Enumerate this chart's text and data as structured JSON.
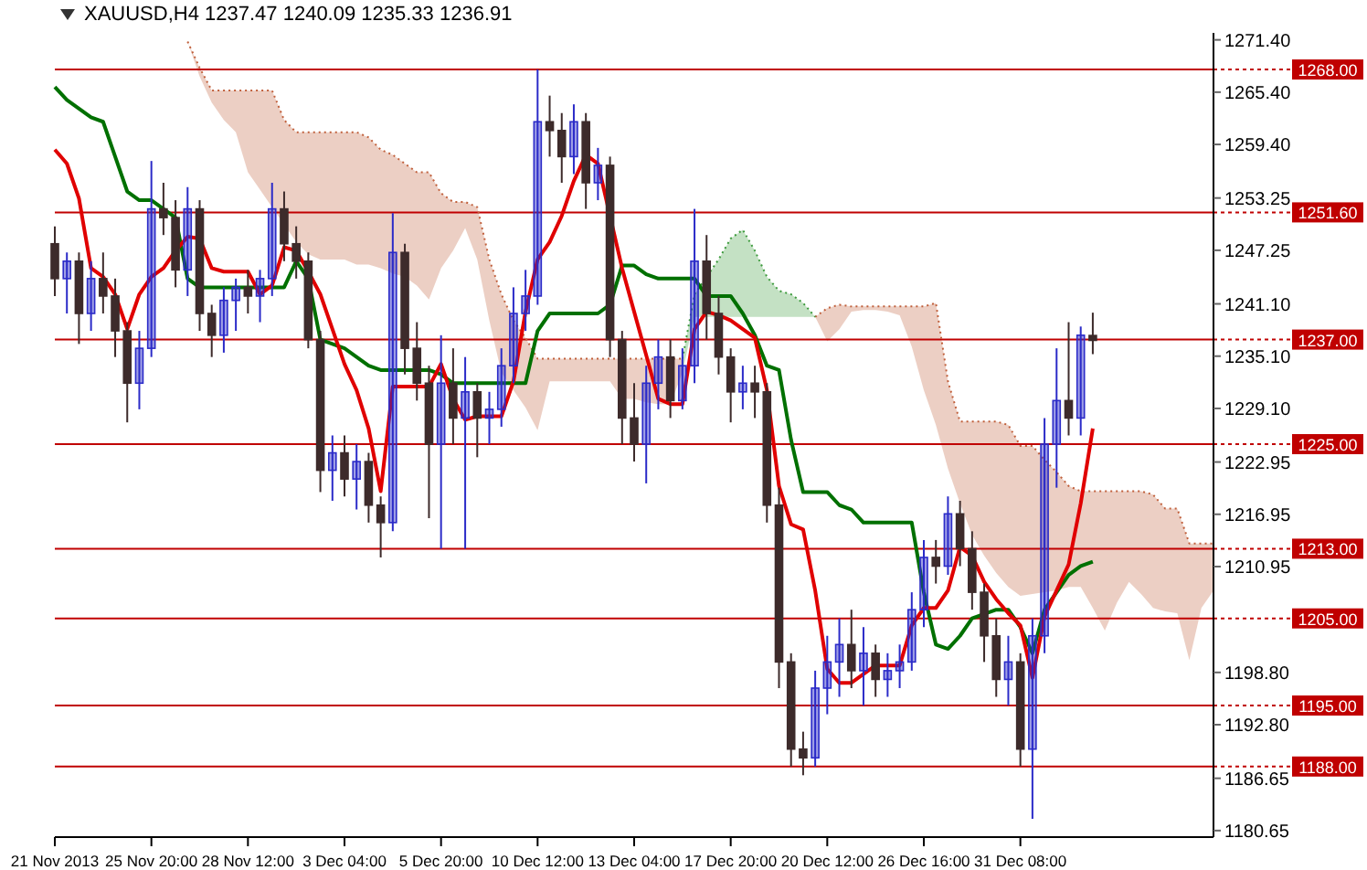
{
  "chart_data": {
    "type": "candlestick",
    "title": "XAUUSD,H4 1237.47 1240.09 1235.33 1236.91",
    "categories": [
      "21 Nov 2013",
      null,
      null,
      null,
      null,
      null,
      null,
      null,
      "25 Nov 20:00",
      null,
      null,
      null,
      null,
      null,
      null,
      null,
      "28 Nov 12:00",
      null,
      null,
      null,
      null,
      null,
      null,
      null,
      "3 Dec 04:00",
      null,
      null,
      null,
      null,
      null,
      null,
      null,
      "5 Dec 20:00",
      null,
      null,
      null,
      null,
      null,
      null,
      null,
      "10 Dec 12:00",
      null,
      null,
      null,
      null,
      null,
      null,
      null,
      "13 Dec 04:00",
      null,
      null,
      null,
      null,
      null,
      null,
      null,
      "17 Dec 20:00",
      null,
      null,
      null,
      null,
      null,
      null,
      null,
      "20 Dec 12:00",
      null,
      null,
      null,
      null,
      null,
      null,
      null,
      "26 Dec 16:00",
      null,
      null,
      null,
      null,
      null,
      null,
      null,
      "31 Dec 08:00",
      null,
      null,
      null,
      null,
      null,
      null,
      null,
      null,
      null,
      null,
      null,
      null,
      null,
      null,
      null,
      null
    ],
    "ylim": [
      1179.9,
      1272.2
    ],
    "yticks": [
      {
        "value": 1271.4,
        "label": "1271.40"
      },
      {
        "value": 1265.4,
        "label": "1265.40"
      },
      {
        "value": 1259.4,
        "label": "1259.40"
      },
      {
        "value": 1253.25,
        "label": "1253.25"
      },
      {
        "value": 1247.25,
        "label": "1247.25"
      },
      {
        "value": 1241.1,
        "label": "1241.10"
      },
      {
        "value": 1235.1,
        "label": "1235.10"
      },
      {
        "value": 1229.1,
        "label": "1229.10"
      },
      {
        "value": 1222.95,
        "label": "1222.95"
      },
      {
        "value": 1216.95,
        "label": "1216.95"
      },
      {
        "value": 1210.95,
        "label": "1210.95"
      },
      {
        "value": 1198.8,
        "label": "1198.80"
      },
      {
        "value": 1192.8,
        "label": "1192.80"
      },
      {
        "value": 1186.65,
        "label": "1186.65"
      },
      {
        "value": 1180.65,
        "label": "1180.65"
      }
    ],
    "ref_lines": [
      {
        "axis": "y",
        "value": 1268,
        "label": "1268.00",
        "color": "#c00000"
      },
      {
        "axis": "y",
        "value": 1251.6,
        "label": "1251.60",
        "color": "#c00000"
      },
      {
        "axis": "y",
        "value": 1237,
        "label": "1237.00",
        "color": "#c00000"
      },
      {
        "axis": "y",
        "value": 1225,
        "label": "1225.00",
        "color": "#c00000"
      },
      {
        "axis": "y",
        "value": 1213,
        "label": "1213.00",
        "color": "#c00000"
      },
      {
        "axis": "y",
        "value": 1205,
        "label": "1205.00",
        "color": "#c00000"
      },
      {
        "axis": "y",
        "value": 1195,
        "label": "1195.00",
        "color": "#c00000"
      },
      {
        "axis": "y",
        "value": 1188,
        "label": "1188.00",
        "color": "#c00000"
      }
    ],
    "series": [
      {
        "type": "line",
        "color": "#c0603c",
        "line_style": "dotted",
        "values": [
          null,
          null,
          null,
          null,
          null,
          null,
          null,
          null,
          null,
          null,
          null,
          1271.2,
          1268.2,
          1265.6,
          1265.6,
          1265.6,
          1265.6,
          1265.6,
          1265.6,
          1262.2,
          1260.8,
          1260.8,
          1260.8,
          1260.8,
          1260.8,
          1260.8,
          1260.2,
          1258.8,
          1258.2,
          1257.2,
          1256.2,
          1256.2,
          1253.8,
          1252.8,
          1252.8,
          1252.2,
          1246.2,
          1242.2,
          1239.2,
          1237.2,
          1234.8,
          1234.8,
          1234.8,
          1234.8,
          1234.8,
          1234.8,
          1234.8,
          1234.8,
          1234.8,
          1234.8,
          1234.8,
          1234.8,
          1234.8,
          null,
          null,
          null,
          null,
          null,
          null,
          null,
          null,
          null,
          null,
          1239.6,
          1240.6,
          1241,
          1240.8,
          1240.8,
          1240.8,
          1240.8,
          1240.8,
          1240.8,
          1240.8,
          1241.2,
          1232.2,
          1227.6,
          1227.6,
          1227.6,
          1227.6,
          1227.2,
          1224.8,
          1224.8,
          1223.2,
          1221.8,
          1220.2,
          1219.6,
          1219.6,
          1219.6,
          1219.6,
          1219.6,
          1219.6,
          1219.2,
          1217.6,
          1217.6,
          1213.6,
          1213.6,
          1213.6
        ],
        "lower": [
          null,
          null,
          null,
          null,
          null,
          null,
          null,
          null,
          null,
          null,
          null,
          1271.2,
          1267.2,
          1264.2,
          1262.2,
          1260.8,
          1256.2,
          1254.2,
          1252.2,
          1250.2,
          1248.2,
          1246.8,
          1246.2,
          1246.2,
          1246.2,
          1245.6,
          1245.6,
          1245.2,
          1244.6,
          1244.2,
          1243.2,
          1241.6,
          1245.2,
          1247.2,
          1249.8,
          1246.2,
          1239.2,
          1233.2,
          1231.2,
          1229.2,
          1226.6,
          1232.2,
          1232.2,
          1232.2,
          1232.2,
          1232.2,
          1232.2,
          1230.2,
          1230.2,
          1229.8,
          1229.6,
          1229.6,
          1233.2,
          null,
          null,
          null,
          null,
          null,
          null,
          null,
          null,
          null,
          null,
          1239.6,
          1236.8,
          1238.2,
          1240.2,
          1240.4,
          1240.4,
          1240.2,
          1239.8,
          1236.2,
          1231.2,
          1227.2,
          1222.2,
          1218.2,
          1214.6,
          1212.2,
          1210.2,
          1208.6,
          1207.6,
          1207.8,
          1208,
          1208.2,
          1208.6,
          1208.6,
          1206.2,
          1203.6,
          1206.8,
          1209.2,
          1207.8,
          1206.2,
          1205.8,
          1205.6,
          1200.2,
          1206.2,
          1208.2
        ],
        "upper": [
          null,
          null,
          null,
          null,
          null,
          null,
          null,
          null,
          null,
          null,
          null,
          1271.2,
          1268.2,
          1265.6,
          1265.6,
          1265.6,
          1265.6,
          1265.6,
          1265.6,
          1262.2,
          1260.8,
          1260.8,
          1260.8,
          1260.8,
          1260.8,
          1260.8,
          1260.2,
          1258.8,
          1258.2,
          1257.2,
          1256.2,
          1256.2,
          1253.8,
          1252.8,
          1252.8,
          1252.2,
          1246.2,
          1242.2,
          1239.2,
          1237.2,
          1234.8,
          1234.8,
          1234.8,
          1234.8,
          1234.8,
          1234.8,
          1234.8,
          1234.8,
          1234.8,
          1234.8,
          1234.8,
          1234.8,
          1234.8,
          null,
          null,
          null,
          null,
          null,
          null,
          null,
          null,
          null,
          null,
          1239.6,
          1240.6,
          1241,
          1240.8,
          1240.8,
          1240.8,
          1240.8,
          1240.8,
          1240.8,
          1240.8,
          1241.2,
          1232.2,
          1227.6,
          1227.6,
          1227.6,
          1227.6,
          1227.2,
          1224.8,
          1224.8,
          1223.2,
          1221.8,
          1220.2,
          1219.6,
          1219.6,
          1219.6,
          1219.6,
          1219.6,
          1219.6,
          1219.2,
          1217.6,
          1217.6,
          1213.6,
          1213.6,
          1213.6
        ]
      },
      {
        "type": "line",
        "color": "#3c9a3c",
        "line_style": "dotted",
        "values": [
          null,
          null,
          null,
          null,
          null,
          null,
          null,
          null,
          null,
          null,
          null,
          null,
          null,
          null,
          null,
          null,
          null,
          null,
          null,
          null,
          null,
          null,
          null,
          null,
          null,
          null,
          null,
          null,
          null,
          null,
          null,
          null,
          null,
          null,
          null,
          null,
          null,
          null,
          null,
          null,
          null,
          null,
          null,
          null,
          null,
          null,
          null,
          null,
          null,
          null,
          null,
          null,
          1234.8,
          1242.2,
          1244.2,
          1246.2,
          1248.6,
          1249.6,
          1247.2,
          1244.2,
          1242.6,
          1242.2,
          1241.2,
          1239.6,
          null,
          null,
          null,
          null,
          null,
          null,
          null,
          null,
          null,
          null,
          null,
          null,
          null,
          null,
          null,
          null,
          null,
          null,
          null,
          null,
          null,
          null,
          null,
          null,
          null,
          null,
          null,
          null,
          null,
          null,
          null,
          null,
          null
        ],
        "lower": [
          null,
          null,
          null,
          null,
          null,
          null,
          null,
          null,
          null,
          null,
          null,
          null,
          null,
          null,
          null,
          null,
          null,
          null,
          null,
          null,
          null,
          null,
          null,
          null,
          null,
          null,
          null,
          null,
          null,
          null,
          null,
          null,
          null,
          null,
          null,
          null,
          null,
          null,
          null,
          null,
          null,
          null,
          null,
          null,
          null,
          null,
          null,
          null,
          null,
          null,
          null,
          null,
          1233.2,
          1239.6,
          1239.6,
          1239.6,
          1239.6,
          1239.6,
          1239.6,
          1239.6,
          1239.6,
          1239.6,
          1239.6,
          1239.6,
          null,
          null,
          null,
          null,
          null,
          null,
          null,
          null,
          null,
          null,
          null,
          null,
          null,
          null,
          null,
          null,
          null,
          null,
          null,
          null,
          null,
          null,
          null,
          null,
          null,
          null,
          null,
          null,
          null,
          null,
          null,
          null,
          null
        ],
        "upper": [
          null,
          null,
          null,
          null,
          null,
          null,
          null,
          null,
          null,
          null,
          null,
          null,
          null,
          null,
          null,
          null,
          null,
          null,
          null,
          null,
          null,
          null,
          null,
          null,
          null,
          null,
          null,
          null,
          null,
          null,
          null,
          null,
          null,
          null,
          null,
          null,
          null,
          null,
          null,
          null,
          null,
          null,
          null,
          null,
          null,
          null,
          null,
          null,
          null,
          null,
          null,
          null,
          1234.8,
          1242.2,
          1244.2,
          1246.2,
          1248.6,
          1249.6,
          1247.2,
          1244.2,
          1242.6,
          1242.2,
          1241.2,
          1239.6,
          null,
          null,
          null,
          null,
          null,
          null,
          null,
          null,
          null,
          null,
          null,
          null,
          null,
          null,
          null,
          null,
          null,
          null,
          null,
          null,
          null,
          null,
          null,
          null,
          null,
          null,
          null,
          null,
          null,
          null,
          null,
          null,
          null
        ]
      },
      {
        "type": "line",
        "color": "#007000",
        "values": [
          1266,
          1264.5,
          1263.5,
          1262.5,
          1262,
          1258,
          1254,
          1253,
          1253,
          1252,
          1251,
          1244,
          1243,
          1243,
          1243,
          1243,
          1243,
          1243,
          1243,
          1243,
          1246,
          1244,
          1237,
          1236.5,
          1236,
          1235,
          1234,
          1233.5,
          1233.5,
          1233.5,
          1233.5,
          1233.5,
          1233,
          1232,
          1232,
          1232,
          1232,
          1232,
          1232,
          1232,
          1238,
          1240,
          1240,
          1240,
          1240,
          1240,
          1241,
          1245.5,
          1245.5,
          1244.5,
          1244,
          1244,
          1244,
          1244,
          1242,
          1242,
          1242,
          1240,
          1237.5,
          1234,
          1233.5,
          1225.5,
          1219.5,
          1219.5,
          1219.5,
          1218,
          1217.5,
          1216,
          1216,
          1216,
          1216,
          1216,
          1208,
          1202,
          1201.5,
          1203,
          1205,
          1205.5,
          1206,
          1206,
          1204,
          1201,
          1206,
          1208,
          1210,
          1211,
          1211.5,
          null,
          null,
          null,
          null,
          null,
          null,
          null,
          null,
          null,
          null
        ]
      },
      {
        "type": "line",
        "color": "#e00000",
        "values": [
          1258.8,
          1257.2,
          1253.2,
          1245.2,
          1244.2,
          1242.2,
          1238.2,
          1242.2,
          1244.2,
          1245.2,
          1247.2,
          1248.8,
          1248.6,
          1245.2,
          1244.8,
          1244.8,
          1244.8,
          1242.2,
          1243.2,
          1247.6,
          1247.2,
          1244.8,
          1242.2,
          1238.2,
          1234.2,
          1231.2,
          1226.8,
          1219.6,
          1231.6,
          1231.6,
          1231.6,
          1231.6,
          1234.2,
          1230.2,
          1227.8,
          1228.2,
          1228.2,
          1228.2,
          1232.2,
          1240.2,
          1246.2,
          1248.2,
          1251.2,
          1255.2,
          1258.2,
          1257.2,
          1251.2,
          1245.2,
          1240.2,
          1235.2,
          1230.2,
          1229.6,
          1229.6,
          1238.2,
          1240.2,
          1239.8,
          1239.2,
          1238.2,
          1237.2,
          1231.2,
          1220.2,
          1215.8,
          1215.2,
          1208.2,
          1199.2,
          1197.6,
          1197.6,
          1198.6,
          1199.6,
          1199.6,
          1199.6,
          1204.2,
          1206.2,
          1206.2,
          1208.2,
          1213.2,
          1212.2,
          1209.2,
          1207.2,
          1205.6,
          1204.2,
          1198.2,
          1205.2,
          1208.2,
          1211.2,
          1218.2,
          1226.8,
          null,
          null,
          null,
          null,
          null,
          null,
          null,
          null,
          null,
          null
        ]
      },
      {
        "type": "candlestick",
        "color": "#2b2bc8",
        "ohlc": [
          null,
          [
            1244,
            1247,
            1240,
            1246
          ],
          null,
          [
            1240,
            1246,
            1238,
            1244
          ],
          null,
          null,
          null,
          [
            1232,
            1238,
            1229,
            1236
          ],
          [
            1236,
            1257.5,
            1235,
            1252
          ],
          null,
          null,
          [
            1245,
            1254.5,
            1242,
            1252
          ],
          null,
          null,
          [
            1237.5,
            1243,
            1235.5,
            1241.5
          ],
          [
            1241.5,
            1244,
            1238,
            1243
          ],
          null,
          [
            1242,
            1245,
            1239,
            1244
          ],
          [
            1244,
            1255,
            1242,
            1252
          ],
          null,
          null,
          null,
          null,
          [
            1222,
            1226,
            1218.5,
            1224
          ],
          null,
          [
            1221,
            1225,
            1217.5,
            1223
          ],
          null,
          null,
          [
            1216,
            1251.5,
            1215,
            1247
          ],
          null,
          null,
          null,
          [
            1225,
            1237.5,
            1213,
            1232
          ],
          null,
          [
            1228,
            1235,
            1213,
            1231
          ],
          null,
          [
            1228,
            1231,
            1225,
            1229
          ],
          [
            1229,
            1236,
            1227,
            1234
          ],
          [
            1234,
            1243,
            1232,
            1240
          ],
          [
            1240,
            1245,
            1238,
            1242
          ],
          [
            1242,
            1268,
            1241,
            1262
          ],
          null,
          null,
          [
            1258,
            1264,
            1256,
            1262
          ],
          null,
          [
            1255,
            1259,
            1253,
            1257
          ],
          null,
          null,
          null,
          [
            1225,
            1234,
            1220.5,
            1232
          ],
          [
            1232,
            1237,
            1229,
            1235
          ],
          null,
          [
            1230,
            1236,
            1229,
            1234
          ],
          [
            1234,
            1252,
            1232,
            1246
          ],
          null,
          null,
          null,
          [
            1231,
            1234,
            1229,
            1232
          ],
          null,
          null,
          null,
          null,
          null,
          [
            1189,
            1199,
            1188,
            1197
          ],
          [
            1197,
            1203,
            1194,
            1200
          ],
          [
            1200,
            1205,
            1196,
            1202
          ],
          null,
          [
            1199,
            1204,
            1195,
            1201
          ],
          null,
          [
            1198,
            1201,
            1196,
            1199
          ],
          [
            1199,
            1202,
            1197,
            1200
          ],
          [
            1200,
            1208,
            1199,
            1206
          ],
          [
            1206,
            1214,
            1204,
            1212
          ],
          null,
          [
            1211,
            1219,
            1210,
            1217
          ],
          null,
          null,
          null,
          null,
          [
            1198,
            1203,
            1195,
            1200
          ],
          null,
          [
            1190,
            1205,
            1182,
            1203
          ],
          [
            1203,
            1228,
            1201,
            1225
          ],
          [
            1225,
            1236,
            1220,
            1230
          ],
          null,
          [
            1228,
            1238.5,
            1226,
            1237.5
          ],
          null,
          null,
          null,
          null,
          null,
          null,
          null,
          null,
          null,
          null,
          null
        ]
      },
      {
        "type": "candlestick",
        "color": "#3d2b2b",
        "ohlc": [
          [
            1248,
            1250,
            1242,
            1244
          ],
          null,
          [
            1246,
            1247,
            1236.5,
            1240
          ],
          null,
          [
            1244,
            1247,
            1240,
            1242
          ],
          [
            1242,
            1244,
            1235,
            1238
          ],
          [
            1238,
            1239,
            1227.5,
            1232
          ],
          null,
          null,
          [
            1252,
            1255,
            1249,
            1251
          ],
          [
            1251,
            1253,
            1243,
            1245
          ],
          null,
          [
            1252,
            1253,
            1238,
            1240
          ],
          [
            1240,
            1241,
            1235,
            1237.5
          ],
          null,
          null,
          [
            1243,
            1245,
            1240,
            1242
          ],
          null,
          null,
          [
            1252,
            1254,
            1246,
            1248
          ],
          [
            1248,
            1250,
            1244,
            1246
          ],
          [
            1246,
            1247,
            1236,
            1237
          ],
          [
            1237,
            1238,
            1219.5,
            1222
          ],
          null,
          [
            1224,
            1226,
            1219,
            1221
          ],
          null,
          [
            1223,
            1224,
            1216,
            1218
          ],
          [
            1218,
            1219,
            1212,
            1216
          ],
          null,
          [
            1247,
            1248,
            1233,
            1236
          ],
          [
            1236,
            1239,
            1230,
            1232
          ],
          [
            1232,
            1234,
            1216.5,
            1225
          ],
          null,
          [
            1232,
            1236,
            1225,
            1228
          ],
          null,
          [
            1231,
            1232,
            1223.5,
            1228
          ],
          null,
          null,
          null,
          null,
          null,
          [
            1262,
            1265,
            1258,
            1261
          ],
          [
            1261,
            1263,
            1255,
            1258
          ],
          null,
          [
            1262,
            1263,
            1252,
            1255
          ],
          null,
          [
            1257,
            1258,
            1235,
            1237
          ],
          [
            1237,
            1238,
            1225,
            1228
          ],
          [
            1228,
            1232,
            1223,
            1225
          ],
          null,
          null,
          [
            1235,
            1237,
            1228,
            1230
          ],
          null,
          null,
          [
            1246,
            1249,
            1237,
            1240
          ],
          [
            1240,
            1242,
            1233,
            1235
          ],
          [
            1235,
            1236,
            1227.5,
            1231
          ],
          null,
          [
            1232,
            1234,
            1228,
            1231
          ],
          [
            1231,
            1232,
            1216,
            1218
          ],
          [
            1218,
            1220,
            1197,
            1200
          ],
          [
            1200,
            1201,
            1188,
            1190
          ],
          [
            1190,
            1192,
            1187,
            1189
          ],
          null,
          null,
          null,
          [
            1202,
            1206,
            1197,
            1199
          ],
          null,
          [
            1201,
            1202,
            1196,
            1198
          ],
          null,
          null,
          null,
          null,
          [
            1212,
            1214,
            1209,
            1211
          ],
          null,
          [
            1217,
            1218.5,
            1211,
            1213
          ],
          [
            1213,
            1215,
            1206,
            1208
          ],
          [
            1208,
            1209,
            1200,
            1203
          ],
          [
            1203,
            1205,
            1196,
            1198
          ],
          null,
          [
            1200,
            1201,
            1188,
            1190
          ],
          null,
          null,
          null,
          [
            1230,
            1239,
            1226,
            1228
          ],
          null,
          [
            1237.47,
            1240.09,
            1235.33,
            1236.91
          ],
          null,
          null,
          null,
          null,
          null,
          null,
          null,
          null,
          null,
          null
        ]
      }
    ]
  }
}
